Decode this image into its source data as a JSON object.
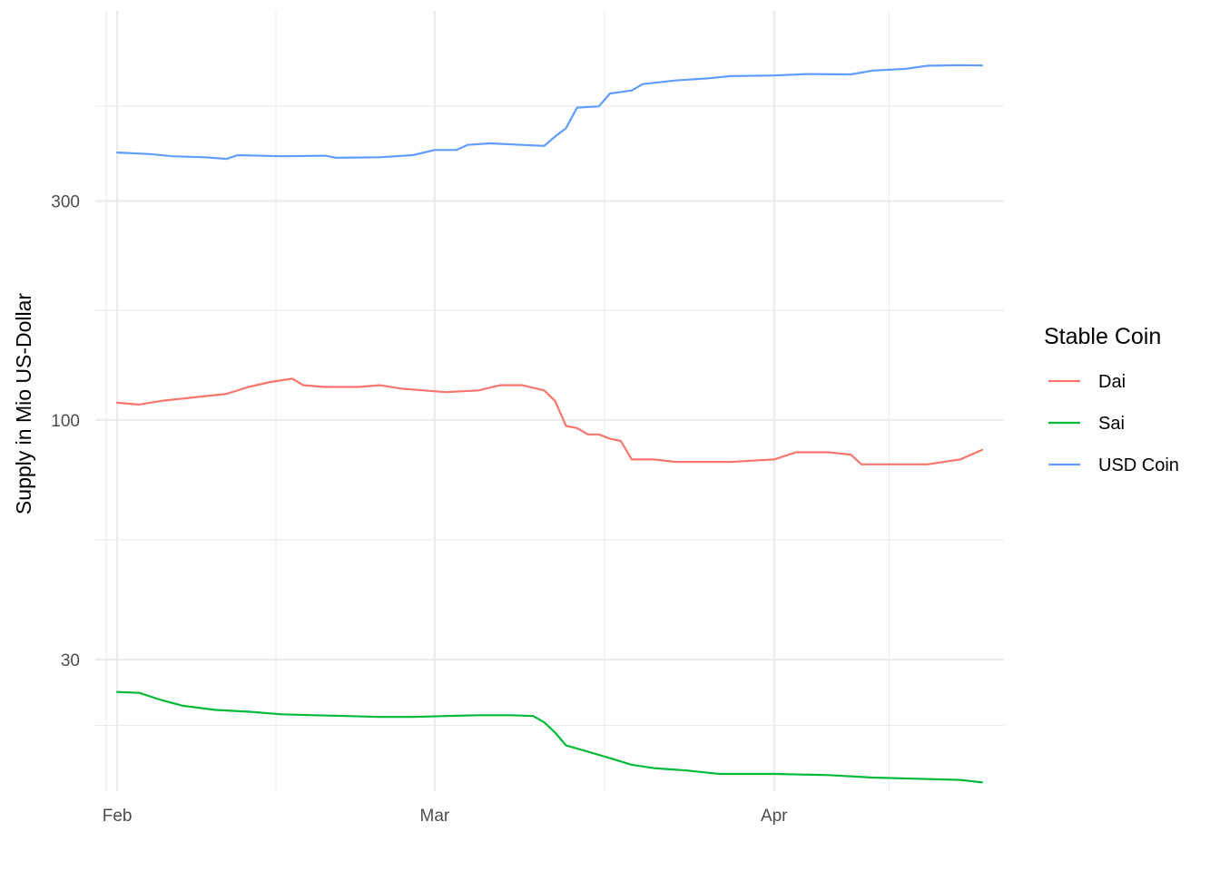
{
  "chart_data": {
    "type": "line",
    "title": "",
    "xlabel": "",
    "ylabel": "Supply in Mio US-Dollar",
    "y_scale": "log10",
    "ylim": [
      15.5,
      780
    ],
    "xlim": [
      "2020-01-30",
      "2020-04-22"
    ],
    "x_ticks": [
      {
        "date": "2020-02-01",
        "label": "Feb"
      },
      {
        "date": "2020-03-01",
        "label": "Mar"
      },
      {
        "date": "2020-04-01",
        "label": "Apr"
      }
    ],
    "y_ticks": [
      {
        "value": 30,
        "label": "30"
      },
      {
        "value": 100,
        "label": "100"
      },
      {
        "value": 300,
        "label": "300"
      }
    ],
    "grid": true,
    "legend": {
      "title": "Stable Coin",
      "position": "right"
    },
    "series": [
      {
        "name": "Dai",
        "color": "#F8766D",
        "points": [
          [
            "2020-02-01",
            109
          ],
          [
            "2020-02-03",
            108
          ],
          [
            "2020-02-05",
            110
          ],
          [
            "2020-02-08",
            112
          ],
          [
            "2020-02-11",
            114
          ],
          [
            "2020-02-13",
            118
          ],
          [
            "2020-02-15",
            121
          ],
          [
            "2020-02-17",
            123
          ],
          [
            "2020-02-18",
            119
          ],
          [
            "2020-02-20",
            118
          ],
          [
            "2020-02-23",
            118
          ],
          [
            "2020-02-25",
            119
          ],
          [
            "2020-02-27",
            117
          ],
          [
            "2020-02-29",
            116
          ],
          [
            "2020-03-02",
            115
          ],
          [
            "2020-03-05",
            116
          ],
          [
            "2020-03-07",
            119
          ],
          [
            "2020-03-09",
            119
          ],
          [
            "2020-03-11",
            116
          ],
          [
            "2020-03-12",
            110
          ],
          [
            "2020-03-13",
            97
          ],
          [
            "2020-03-14",
            96
          ],
          [
            "2020-03-15",
            93
          ],
          [
            "2020-03-16",
            93
          ],
          [
            "2020-03-17",
            91
          ],
          [
            "2020-03-18",
            90
          ],
          [
            "2020-03-19",
            82
          ],
          [
            "2020-03-21",
            82
          ],
          [
            "2020-03-23",
            81
          ],
          [
            "2020-03-25",
            81
          ],
          [
            "2020-03-28",
            81
          ],
          [
            "2020-04-01",
            82
          ],
          [
            "2020-04-03",
            85
          ],
          [
            "2020-04-06",
            85
          ],
          [
            "2020-04-08",
            84
          ],
          [
            "2020-04-09",
            80
          ],
          [
            "2020-04-12",
            80
          ],
          [
            "2020-04-15",
            80
          ],
          [
            "2020-04-18",
            82
          ],
          [
            "2020-04-20",
            86
          ]
        ]
      },
      {
        "name": "Sai",
        "color": "#00BA38",
        "points": [
          [
            "2020-02-01",
            25.5
          ],
          [
            "2020-02-03",
            25.4
          ],
          [
            "2020-02-05",
            24.5
          ],
          [
            "2020-02-07",
            23.8
          ],
          [
            "2020-02-10",
            23.3
          ],
          [
            "2020-02-13",
            23.1
          ],
          [
            "2020-02-16",
            22.8
          ],
          [
            "2020-02-19",
            22.7
          ],
          [
            "2020-02-22",
            22.6
          ],
          [
            "2020-02-25",
            22.5
          ],
          [
            "2020-02-28",
            22.5
          ],
          [
            "2020-03-02",
            22.6
          ],
          [
            "2020-03-05",
            22.7
          ],
          [
            "2020-03-08",
            22.7
          ],
          [
            "2020-03-10",
            22.6
          ],
          [
            "2020-03-11",
            21.9
          ],
          [
            "2020-03-12",
            20.8
          ],
          [
            "2020-03-13",
            19.5
          ],
          [
            "2020-03-15",
            18.9
          ],
          [
            "2020-03-17",
            18.3
          ],
          [
            "2020-03-19",
            17.7
          ],
          [
            "2020-03-21",
            17.4
          ],
          [
            "2020-03-24",
            17.2
          ],
          [
            "2020-03-27",
            16.9
          ],
          [
            "2020-04-01",
            16.9
          ],
          [
            "2020-04-06",
            16.8
          ],
          [
            "2020-04-10",
            16.6
          ],
          [
            "2020-04-14",
            16.5
          ],
          [
            "2020-04-18",
            16.4
          ],
          [
            "2020-04-20",
            16.2
          ]
        ]
      },
      {
        "name": "USD Coin",
        "color": "#619CFF",
        "points": [
          [
            "2020-02-01",
            383
          ],
          [
            "2020-02-04",
            380
          ],
          [
            "2020-02-06",
            376
          ],
          [
            "2020-02-09",
            374
          ],
          [
            "2020-02-11",
            371
          ],
          [
            "2020-02-12",
            378
          ],
          [
            "2020-02-16",
            376
          ],
          [
            "2020-02-20",
            377
          ],
          [
            "2020-02-21",
            373
          ],
          [
            "2020-02-25",
            374
          ],
          [
            "2020-02-28",
            378
          ],
          [
            "2020-03-01",
            388
          ],
          [
            "2020-03-03",
            388
          ],
          [
            "2020-03-04",
            398
          ],
          [
            "2020-03-06",
            401
          ],
          [
            "2020-03-09",
            398
          ],
          [
            "2020-03-11",
            396
          ],
          [
            "2020-03-12",
            415
          ],
          [
            "2020-03-13",
            433
          ],
          [
            "2020-03-14",
            480
          ],
          [
            "2020-03-16",
            483
          ],
          [
            "2020-03-17",
            515
          ],
          [
            "2020-03-19",
            523
          ],
          [
            "2020-03-20",
            540
          ],
          [
            "2020-03-23",
            550
          ],
          [
            "2020-03-26",
            556
          ],
          [
            "2020-03-28",
            562
          ],
          [
            "2020-04-01",
            564
          ],
          [
            "2020-04-04",
            568
          ],
          [
            "2020-04-08",
            567
          ],
          [
            "2020-04-10",
            578
          ],
          [
            "2020-04-13",
            583
          ],
          [
            "2020-04-15",
            592
          ],
          [
            "2020-04-18",
            594
          ],
          [
            "2020-04-20",
            593
          ]
        ]
      }
    ]
  }
}
